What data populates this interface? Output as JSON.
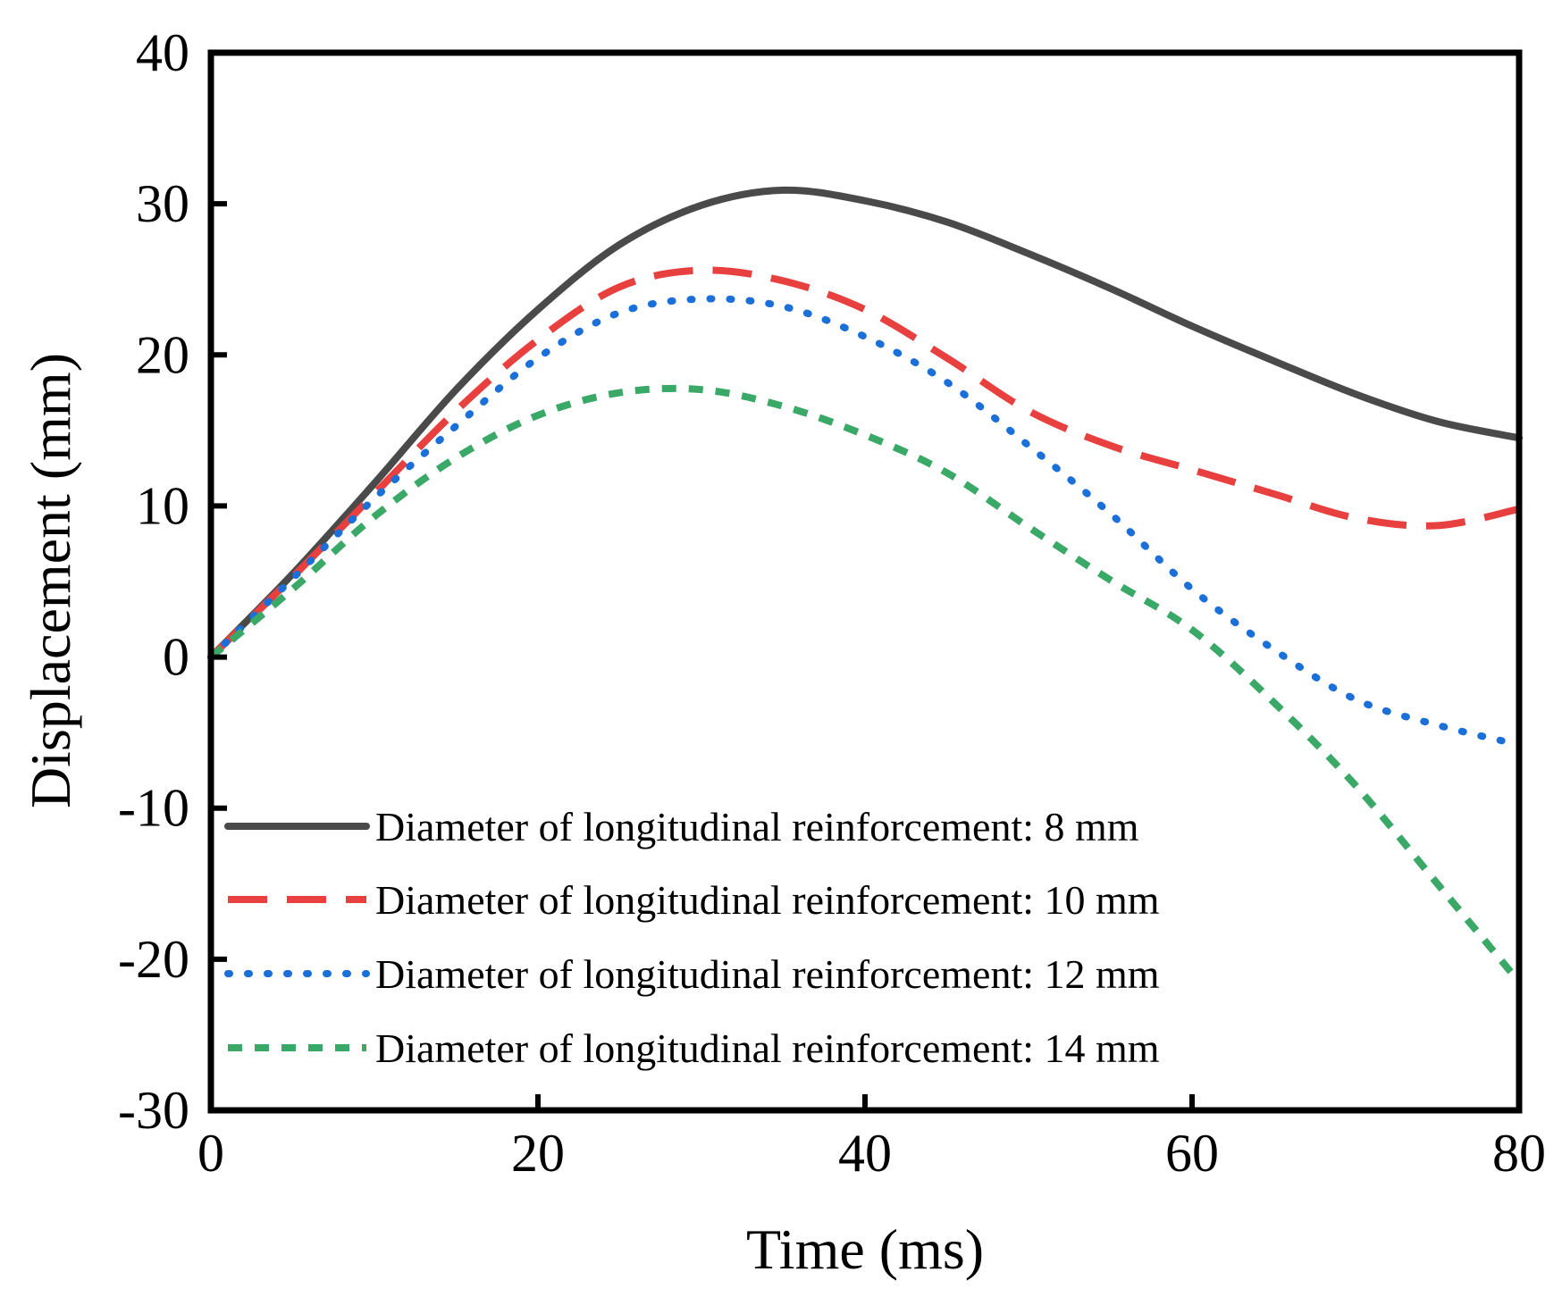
{
  "chart_data": {
    "type": "line",
    "title": "",
    "xlabel": "Time (ms)",
    "ylabel": "Displacement (mm)",
    "xlim": [
      0,
      80
    ],
    "ylim": [
      -30,
      40
    ],
    "xticks": [
      "0",
      "20",
      "40",
      "60",
      "80"
    ],
    "yticks": [
      "-30",
      "-20",
      "-10",
      "0",
      "10",
      "20",
      "30",
      "40"
    ],
    "grid": false,
    "legend_position": "bottom-left",
    "series": [
      {
        "name": "Diameter of longitudinal reinforcement: 8 mm",
        "color": "#4a4a4a",
        "style": "solid",
        "x": [
          0,
          5,
          10,
          15,
          20,
          25,
          30,
          35,
          40,
          45,
          50,
          55,
          60,
          65,
          70,
          75,
          80
        ],
        "y": [
          0,
          5.5,
          11.5,
          17.7,
          23.0,
          27.3,
          29.9,
          30.9,
          30.2,
          28.8,
          26.7,
          24.4,
          21.9,
          19.6,
          17.4,
          15.6,
          14.5
        ]
      },
      {
        "name": "Diameter of longitudinal reinforcement: 10 mm",
        "color": "#e8403f",
        "style": "dashed",
        "x": [
          0,
          5,
          10,
          15,
          20,
          25,
          30,
          35,
          40,
          45,
          50,
          55,
          60,
          65,
          70,
          75,
          80
        ],
        "y": [
          0,
          5.3,
          10.8,
          16.3,
          21.0,
          24.5,
          25.6,
          24.9,
          23.0,
          19.8,
          16.3,
          14.0,
          12.4,
          10.8,
          9.2,
          8.7,
          9.8
        ]
      },
      {
        "name": "Diameter of longitudinal reinforcement: 12 mm",
        "color": "#1a6fd8",
        "style": "dotted",
        "x": [
          0,
          5,
          10,
          15,
          20,
          25,
          30,
          35,
          40,
          45,
          50,
          55,
          60,
          65,
          70,
          75,
          80
        ],
        "y": [
          0,
          5.2,
          10.5,
          15.3,
          19.8,
          22.8,
          23.7,
          23.2,
          21.2,
          18.2,
          14.0,
          9.5,
          4.5,
          0.5,
          -2.8,
          -4.5,
          -5.8
        ]
      },
      {
        "name": "Diameter of longitudinal reinforcement: 14 mm",
        "color": "#3aa866",
        "style": "short-dashed",
        "x": [
          0,
          5,
          10,
          15,
          20,
          25,
          30,
          35,
          40,
          45,
          50,
          55,
          60,
          65,
          70,
          75,
          80
        ],
        "y": [
          0,
          4.5,
          9.3,
          13.2,
          16.0,
          17.5,
          17.7,
          16.6,
          14.7,
          12.2,
          8.6,
          5.1,
          1.8,
          -3.0,
          -8.5,
          -15.0,
          -21.5
        ]
      }
    ]
  }
}
